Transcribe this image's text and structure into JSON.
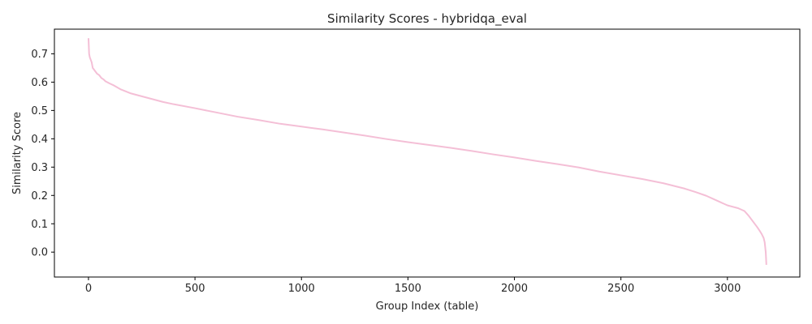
{
  "chart_data": {
    "type": "line",
    "title": "Similarity Scores - hybridqa_eval",
    "xlabel": "Group Index (table)",
    "ylabel": "Similarity Score",
    "xlim": [
      -160,
      3340
    ],
    "ylim": [
      -0.088,
      0.787
    ],
    "xticks": [
      0,
      500,
      1000,
      1500,
      2000,
      2500,
      3000
    ],
    "yticks": [
      0.0,
      0.1,
      0.2,
      0.3,
      0.4,
      0.5,
      0.6,
      0.7
    ],
    "grid": false,
    "series": [
      {
        "color": "#f4bfd6",
        "x": [
          0,
          3,
          6,
          10,
          15,
          20,
          30,
          40,
          50,
          60,
          70,
          80,
          100,
          120,
          150,
          200,
          250,
          300,
          350,
          400,
          500,
          600,
          700,
          800,
          900,
          1000,
          1100,
          1200,
          1300,
          1400,
          1500,
          1600,
          1700,
          1800,
          1900,
          2000,
          2100,
          2200,
          2300,
          2400,
          2500,
          2600,
          2700,
          2800,
          2850,
          2900,
          2950,
          3000,
          3050,
          3080,
          3100,
          3120,
          3140,
          3150,
          3160,
          3170,
          3175,
          3180,
          3183
        ],
        "y": [
          0.755,
          0.7,
          0.688,
          0.68,
          0.67,
          0.65,
          0.64,
          0.63,
          0.625,
          0.615,
          0.61,
          0.603,
          0.595,
          0.588,
          0.575,
          0.56,
          0.55,
          0.54,
          0.53,
          0.522,
          0.508,
          0.493,
          0.478,
          0.466,
          0.453,
          0.443,
          0.433,
          0.422,
          0.411,
          0.399,
          0.388,
          0.378,
          0.368,
          0.357,
          0.345,
          0.334,
          0.322,
          0.311,
          0.299,
          0.284,
          0.271,
          0.258,
          0.243,
          0.224,
          0.212,
          0.199,
          0.182,
          0.165,
          0.155,
          0.145,
          0.128,
          0.108,
          0.088,
          0.077,
          0.065,
          0.05,
          0.035,
          0.0,
          -0.045
        ]
      }
    ]
  }
}
